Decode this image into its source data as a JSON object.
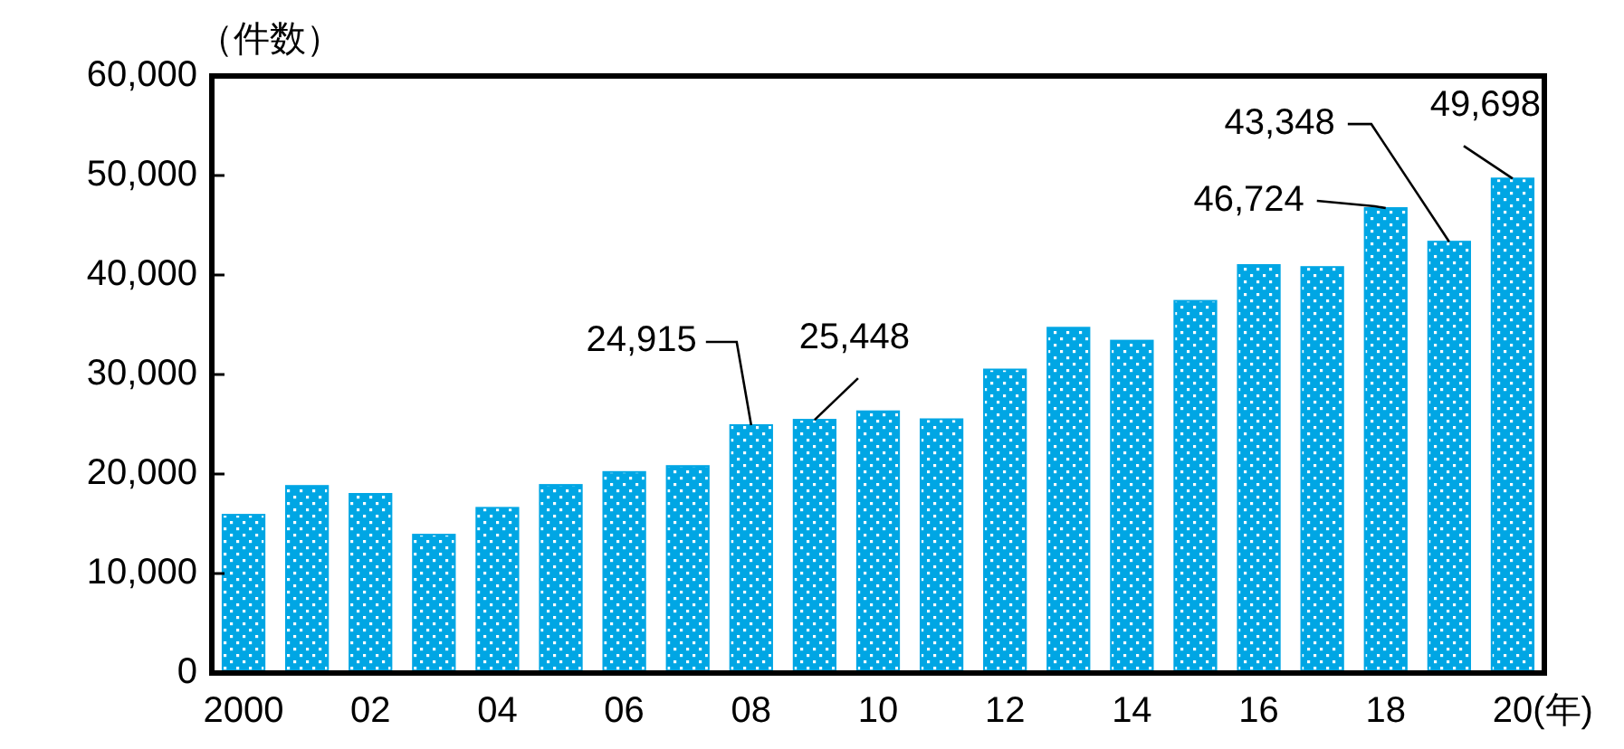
{
  "chart_data": {
    "type": "bar",
    "ylabel": "（件数）",
    "xlabel": "(年)",
    "categories": [
      "2000",
      null,
      "02",
      null,
      "04",
      null,
      "06",
      null,
      "08",
      null,
      "10",
      null,
      "12",
      null,
      "14",
      null,
      "16",
      null,
      "18",
      null,
      "20"
    ],
    "values": [
      15900,
      18800,
      18000,
      13900,
      16600,
      18900,
      20200,
      20800,
      24915,
      25448,
      26300,
      25500,
      30500,
      34700,
      33400,
      37400,
      41000,
      40800,
      46724,
      43348,
      49698
    ],
    "value_labels": [
      null,
      null,
      null,
      null,
      null,
      null,
      null,
      null,
      "24,915",
      "25,448",
      null,
      null,
      null,
      null,
      null,
      null,
      null,
      null,
      "46,724",
      "43,348",
      "49,698"
    ],
    "color": "#00a6e4",
    "ylim": [
      0,
      60000
    ],
    "yticks": [
      {
        "value": 0,
        "label": "0"
      },
      {
        "value": 10000,
        "label": "10,000"
      },
      {
        "value": 20000,
        "label": "20,000"
      },
      {
        "value": 30000,
        "label": "30,000"
      },
      {
        "value": 40000,
        "label": "40,000"
      },
      {
        "value": 50000,
        "label": "50,000"
      },
      {
        "value": 60000,
        "label": "60,000"
      }
    ],
    "grid": false
  }
}
